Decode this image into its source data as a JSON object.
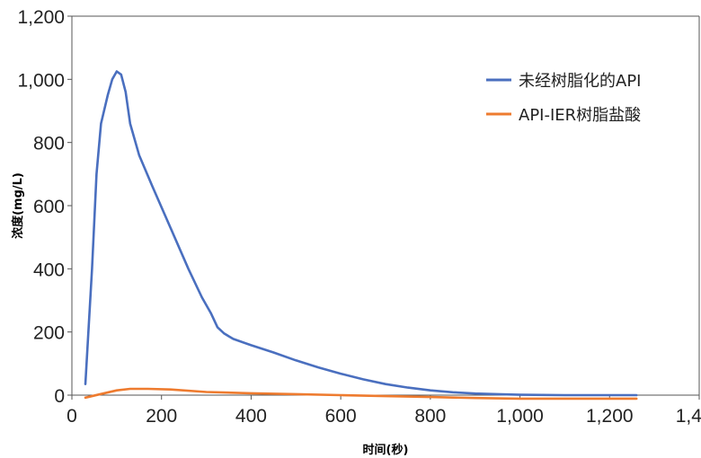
{
  "chart_data": {
    "type": "line",
    "title": "",
    "xlabel": "时间(秒)",
    "ylabel": "浓度(mg/L)",
    "xlim": [
      0,
      1400
    ],
    "ylim": [
      0,
      1200
    ],
    "x_ticks": [
      0,
      200,
      400,
      600,
      800,
      1000,
      1200,
      1400
    ],
    "x_tick_labels": [
      "0",
      "200",
      "400",
      "600",
      "800",
      "1,000",
      "1,200",
      "1,400"
    ],
    "y_ticks": [
      0,
      200,
      400,
      600,
      800,
      1000,
      1200
    ],
    "y_tick_labels": [
      "0",
      "200",
      "400",
      "600",
      "800",
      "1,000",
      "1,200"
    ],
    "grid": false,
    "legend_position": "top-right",
    "series": [
      {
        "name": "未经树脂化的API",
        "color": "#4a6fbf",
        "points": [
          [
            30,
            35
          ],
          [
            45,
            400
          ],
          [
            55,
            700
          ],
          [
            65,
            860
          ],
          [
            80,
            950
          ],
          [
            90,
            1000
          ],
          [
            100,
            1025
          ],
          [
            110,
            1015
          ],
          [
            120,
            960
          ],
          [
            130,
            860
          ],
          [
            150,
            760
          ],
          [
            180,
            660
          ],
          [
            220,
            530
          ],
          [
            260,
            400
          ],
          [
            290,
            310
          ],
          [
            310,
            260
          ],
          [
            325,
            215
          ],
          [
            340,
            195
          ],
          [
            360,
            178
          ],
          [
            400,
            158
          ],
          [
            450,
            135
          ],
          [
            500,
            110
          ],
          [
            550,
            88
          ],
          [
            600,
            68
          ],
          [
            650,
            50
          ],
          [
            700,
            35
          ],
          [
            750,
            24
          ],
          [
            800,
            15
          ],
          [
            850,
            9
          ],
          [
            900,
            5
          ],
          [
            950,
            3
          ],
          [
            1000,
            1
          ],
          [
            1100,
            0
          ],
          [
            1260,
            0
          ]
        ]
      },
      {
        "name": "API-IER树脂盐酸",
        "color": "#ee7b2f",
        "points": [
          [
            30,
            -8
          ],
          [
            60,
            2
          ],
          [
            100,
            15
          ],
          [
            130,
            20
          ],
          [
            170,
            20
          ],
          [
            220,
            18
          ],
          [
            300,
            10
          ],
          [
            400,
            6
          ],
          [
            500,
            3
          ],
          [
            600,
            0
          ],
          [
            700,
            -3
          ],
          [
            800,
            -6
          ],
          [
            900,
            -9
          ],
          [
            1000,
            -11
          ],
          [
            1100,
            -11
          ],
          [
            1260,
            -11
          ]
        ]
      }
    ]
  }
}
